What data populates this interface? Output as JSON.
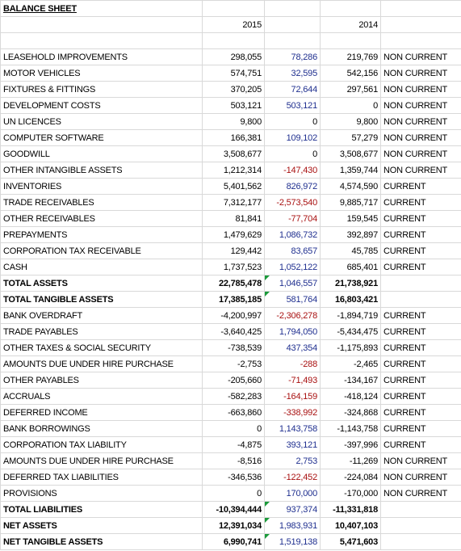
{
  "title": "BALANCE SHEET",
  "years": [
    "2015",
    "2014"
  ],
  "rows": [
    [
      "LEASEHOLD IMPROVEMENTS",
      "298,055",
      "78,286",
      "219,769",
      "NON CURRENT"
    ],
    [
      "MOTOR VEHICLES",
      "574,751",
      "32,595",
      "542,156",
      "NON CURRENT"
    ],
    [
      "FIXTURES & FITTINGS",
      "370,205",
      "72,644",
      "297,561",
      "NON CURRENT"
    ],
    [
      "DEVELOPMENT COSTS",
      "503,121",
      "503,121",
      "0",
      "NON CURRENT"
    ],
    [
      "UN LICENCES",
      "9,800",
      "0",
      "9,800",
      "NON CURRENT"
    ],
    [
      "COMPUTER SOFTWARE",
      "166,381",
      "109,102",
      "57,279",
      "NON CURRENT"
    ],
    [
      "GOODWILL",
      "3,508,677",
      "0",
      "3,508,677",
      "NON CURRENT"
    ],
    [
      "OTHER INTANGIBLE ASSETS",
      "1,212,314",
      "-147,430",
      "1,359,744",
      "NON CURRENT"
    ],
    [
      "INVENTORIES",
      "5,401,562",
      "826,972",
      "4,574,590",
      "CURRENT"
    ],
    [
      "TRADE RECEIVABLES",
      "7,312,177",
      "-2,573,540",
      "9,885,717",
      "CURRENT"
    ],
    [
      "OTHER RECEIVABLES",
      "81,841",
      "-77,704",
      "159,545",
      "CURRENT"
    ],
    [
      "PREPAYMENTS",
      "1,479,629",
      "1,086,732",
      "392,897",
      "CURRENT"
    ],
    [
      "CORPORATION TAX RECEIVABLE",
      "129,442",
      "83,657",
      "45,785",
      "CURRENT"
    ],
    [
      "CASH",
      "1,737,523",
      "1,052,122",
      "685,401",
      "CURRENT"
    ],
    [
      "TOTAL ASSETS",
      "22,785,478",
      "1,046,557",
      "21,738,921",
      null
    ],
    [
      "TOTAL TANGIBLE ASSETS",
      "17,385,185",
      "581,764",
      "16,803,421",
      null
    ],
    [
      "BANK OVERDRAFT",
      "-4,200,997",
      "-2,306,278",
      "-1,894,719",
      "CURRENT"
    ],
    [
      "TRADE PAYABLES",
      "-3,640,425",
      "1,794,050",
      "-5,434,475",
      "CURRENT"
    ],
    [
      "OTHER TAXES & SOCIAL SECURITY",
      "-738,539",
      "437,354",
      "-1,175,893",
      "CURRENT"
    ],
    [
      "AMOUNTS DUE UNDER HIRE PURCHASE",
      "-2,753",
      "-288",
      "-2,465",
      "CURRENT"
    ],
    [
      "OTHER PAYABLES",
      "-205,660",
      "-71,493",
      "-134,167",
      "CURRENT"
    ],
    [
      "ACCRUALS",
      "-582,283",
      "-164,159",
      "-418,124",
      "CURRENT"
    ],
    [
      "DEFERRED INCOME",
      "-663,860",
      "-338,992",
      "-324,868",
      "CURRENT"
    ],
    [
      "BANK BORROWINGS",
      "0",
      "1,143,758",
      "-1,143,758",
      "CURRENT"
    ],
    [
      "CORPORATION TAX LIABILITY",
      "-4,875",
      "393,121",
      "-397,996",
      "CURRENT"
    ],
    [
      "AMOUNTS DUE UNDER HIRE PURCHASE",
      "-8,516",
      "2,753",
      "-11,269",
      "NON CURRENT"
    ],
    [
      "DEFERRED TAX LIABILITIES",
      "-346,536",
      "-122,452",
      "-224,084",
      "NON CURRENT"
    ],
    [
      "PROVISIONS",
      "0",
      "170,000",
      "-170,000",
      "NON CURRENT"
    ],
    [
      "TOTAL LIABILITIES",
      "-10,394,444",
      "937,374",
      "-11,331,818",
      null
    ],
    [
      "NET ASSETS",
      "12,391,034",
      "1,983,931",
      "10,407,103",
      null
    ],
    [
      "NET TANGIBLE ASSETS",
      "6,990,741",
      "1,519,138",
      "5,471,603",
      null
    ]
  ]
}
